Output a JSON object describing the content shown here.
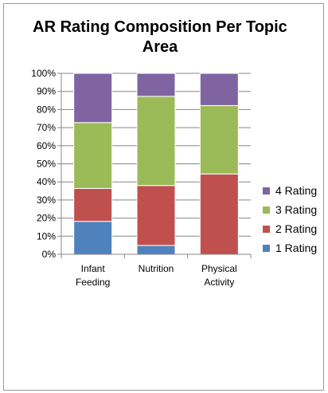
{
  "chart_data": {
    "type": "bar",
    "stacked": true,
    "percent": true,
    "title": "AR Rating Composition Per Topic Area",
    "categories": [
      [
        "Infant",
        "Feeding"
      ],
      [
        "Nutrition"
      ],
      [
        "Physical",
        "Activity"
      ]
    ],
    "series": [
      {
        "name": "1 Rating",
        "color": "#4f81bd",
        "values": [
          18.2,
          4.9,
          0
        ]
      },
      {
        "name": "2 Rating",
        "color": "#c0504d",
        "values": [
          18.2,
          33.1,
          44.4
        ]
      },
      {
        "name": "3 Rating",
        "color": "#9bbb59",
        "values": [
          36.4,
          49.3,
          37.8
        ]
      },
      {
        "name": "4 Rating",
        "color": "#8064a2",
        "values": [
          27.2,
          12.7,
          17.8
        ]
      }
    ],
    "ylim": [
      0,
      100
    ],
    "yticks": [
      "0%",
      "10%",
      "20%",
      "30%",
      "40%",
      "50%",
      "60%",
      "70%",
      "80%",
      "90%",
      "100%"
    ],
    "grid": true,
    "legend": "right",
    "legend_order": [
      "4 Rating",
      "3 Rating",
      "2 Rating",
      "1 Rating"
    ]
  }
}
